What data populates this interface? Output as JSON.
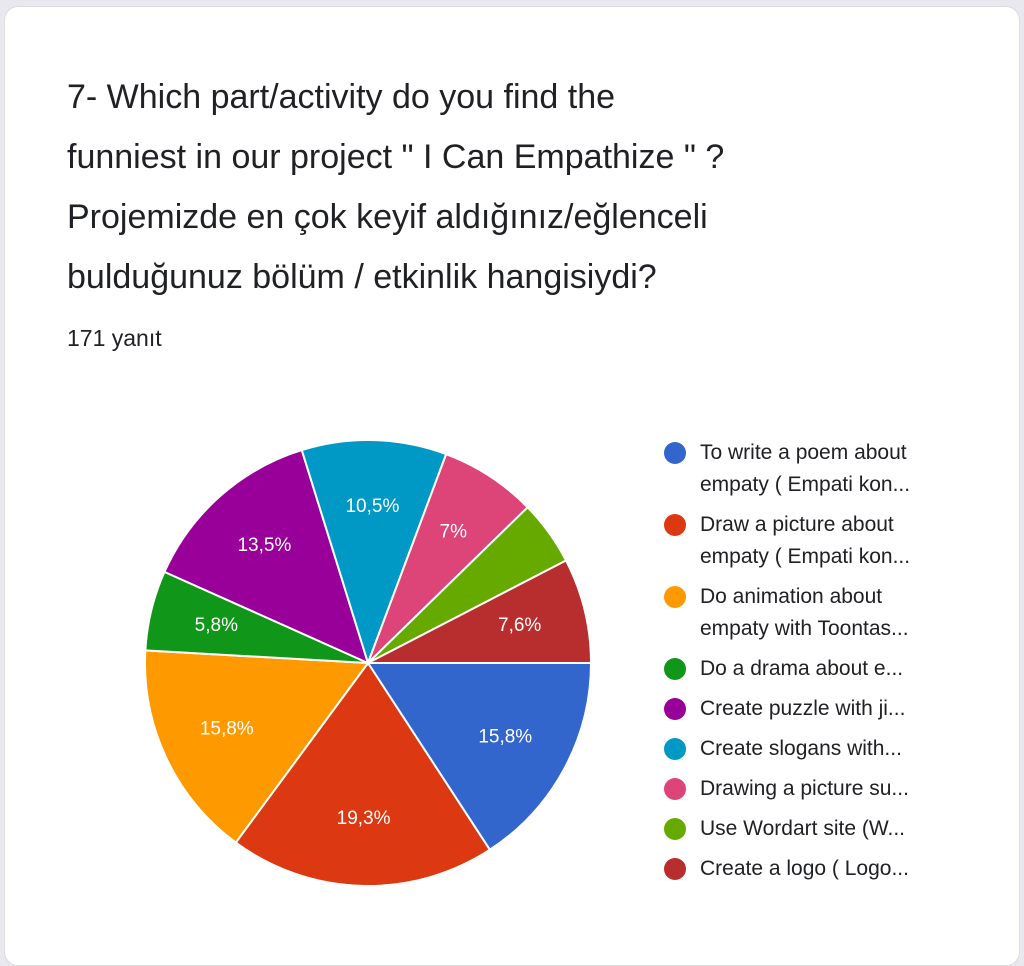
{
  "chart_data": {
    "type": "pie",
    "title": "7- Which part/activity do you find the\nfunniest in our project \" I Can Empathize \" ?\nProjemizde en çok keyif aldığınız/eğlenceli\nbulduğunuz bölüm / etkinlik hangisiydi?",
    "subtitle": "171 yanıt",
    "categories": [
      "To write a poem about empaty ( Empati kon...",
      "Draw a picture about empaty ( Empati kon...",
      "Do animation about empaty with Toontas...",
      "Do a drama about e...",
      "Create puzzle with ji...",
      "Create slogans with...",
      "Drawing a picture su...",
      "Use Wordart site (W...",
      "Create a logo ( Logo..."
    ],
    "values": [
      15.8,
      19.3,
      15.8,
      5.8,
      13.5,
      10.5,
      7,
      4.7,
      7.6
    ],
    "value_labels": [
      "15,8%",
      "19,3%",
      "15,8%",
      "5,8%",
      "13,5%",
      "10,5%",
      "7%",
      null,
      "7,6%"
    ],
    "colors": [
      "#3366cc",
      "#dc3912",
      "#ff9900",
      "#109618",
      "#990099",
      "#0099c6",
      "#dd4477",
      "#66aa00",
      "#b82e2e"
    ],
    "legend": "right"
  }
}
